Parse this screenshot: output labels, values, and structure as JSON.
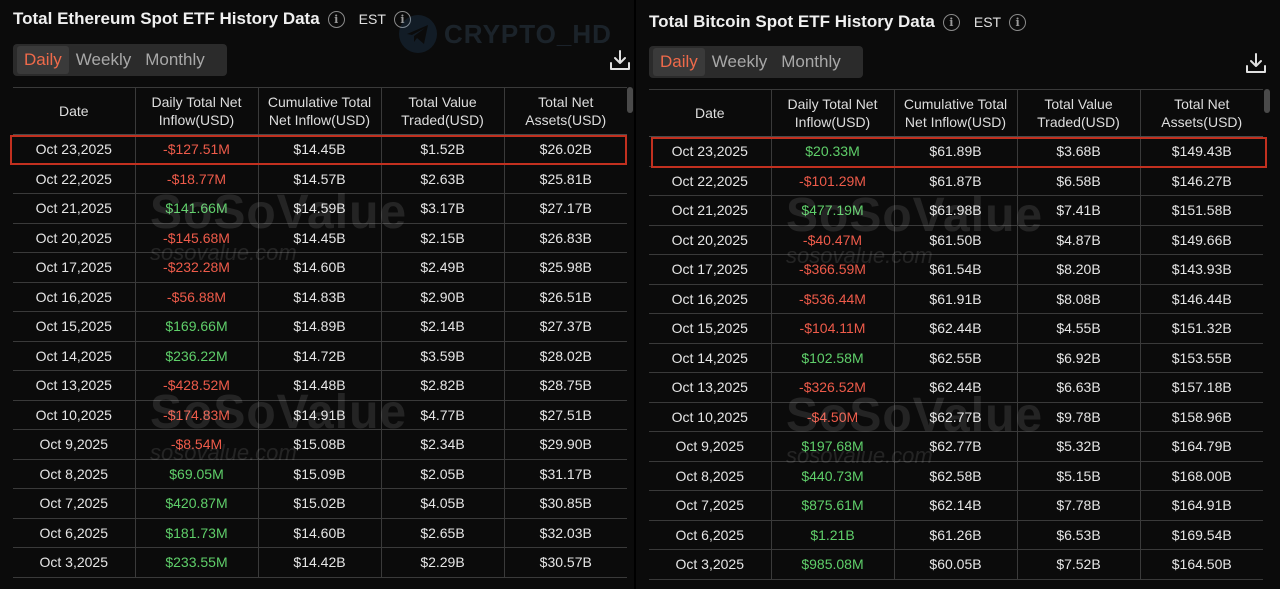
{
  "watermarks": {
    "top": "CRYPTO_HD",
    "brand": "SoSoValue",
    "brand_url": "sosovalue.com"
  },
  "eth": {
    "title": "Total Ethereum Spot ETF History Data",
    "timezone": "EST",
    "tabs": [
      "Daily",
      "Weekly",
      "Monthly"
    ],
    "active_tab": 0,
    "columns": [
      "Date",
      "Daily Total Net Inflow(USD)",
      "Cumulative Total Net Inflow(USD)",
      "Total Value Traded(USD)",
      "Total Net Assets(USD)"
    ],
    "rows": [
      {
        "date": "Oct 23,2025",
        "inflow": "-$127.51M",
        "cumulative": "$14.45B",
        "traded": "$1.52B",
        "assets": "$26.02B",
        "sign": "neg"
      },
      {
        "date": "Oct 22,2025",
        "inflow": "-$18.77M",
        "cumulative": "$14.57B",
        "traded": "$2.63B",
        "assets": "$25.81B",
        "sign": "neg"
      },
      {
        "date": "Oct 21,2025",
        "inflow": "$141.66M",
        "cumulative": "$14.59B",
        "traded": "$3.17B",
        "assets": "$27.17B",
        "sign": "pos"
      },
      {
        "date": "Oct 20,2025",
        "inflow": "-$145.68M",
        "cumulative": "$14.45B",
        "traded": "$2.15B",
        "assets": "$26.83B",
        "sign": "neg"
      },
      {
        "date": "Oct 17,2025",
        "inflow": "-$232.28M",
        "cumulative": "$14.60B",
        "traded": "$2.49B",
        "assets": "$25.98B",
        "sign": "neg"
      },
      {
        "date": "Oct 16,2025",
        "inflow": "-$56.88M",
        "cumulative": "$14.83B",
        "traded": "$2.90B",
        "assets": "$26.51B",
        "sign": "neg"
      },
      {
        "date": "Oct 15,2025",
        "inflow": "$169.66M",
        "cumulative": "$14.89B",
        "traded": "$2.14B",
        "assets": "$27.37B",
        "sign": "pos"
      },
      {
        "date": "Oct 14,2025",
        "inflow": "$236.22M",
        "cumulative": "$14.72B",
        "traded": "$3.59B",
        "assets": "$28.02B",
        "sign": "pos"
      },
      {
        "date": "Oct 13,2025",
        "inflow": "-$428.52M",
        "cumulative": "$14.48B",
        "traded": "$2.82B",
        "assets": "$28.75B",
        "sign": "neg"
      },
      {
        "date": "Oct 10,2025",
        "inflow": "-$174.83M",
        "cumulative": "$14.91B",
        "traded": "$4.77B",
        "assets": "$27.51B",
        "sign": "neg"
      },
      {
        "date": "Oct 9,2025",
        "inflow": "-$8.54M",
        "cumulative": "$15.08B",
        "traded": "$2.34B",
        "assets": "$29.90B",
        "sign": "neg"
      },
      {
        "date": "Oct 8,2025",
        "inflow": "$69.05M",
        "cumulative": "$15.09B",
        "traded": "$2.05B",
        "assets": "$31.17B",
        "sign": "pos"
      },
      {
        "date": "Oct 7,2025",
        "inflow": "$420.87M",
        "cumulative": "$15.02B",
        "traded": "$4.05B",
        "assets": "$30.85B",
        "sign": "pos"
      },
      {
        "date": "Oct 6,2025",
        "inflow": "$181.73M",
        "cumulative": "$14.60B",
        "traded": "$2.65B",
        "assets": "$32.03B",
        "sign": "pos"
      },
      {
        "date": "Oct 3,2025",
        "inflow": "$233.55M",
        "cumulative": "$14.42B",
        "traded": "$2.29B",
        "assets": "$30.57B",
        "sign": "pos"
      }
    ]
  },
  "btc": {
    "title": "Total Bitcoin Spot ETF History Data",
    "timezone": "EST",
    "tabs": [
      "Daily",
      "Weekly",
      "Monthly"
    ],
    "active_tab": 0,
    "columns": [
      "Date",
      "Daily Total Net Inflow(USD)",
      "Cumulative Total Net Inflow(USD)",
      "Total Value Traded(USD)",
      "Total Net Assets(USD)"
    ],
    "rows": [
      {
        "date": "Oct 23,2025",
        "inflow": "$20.33M",
        "cumulative": "$61.89B",
        "traded": "$3.68B",
        "assets": "$149.43B",
        "sign": "pos"
      },
      {
        "date": "Oct 22,2025",
        "inflow": "-$101.29M",
        "cumulative": "$61.87B",
        "traded": "$6.58B",
        "assets": "$146.27B",
        "sign": "neg"
      },
      {
        "date": "Oct 21,2025",
        "inflow": "$477.19M",
        "cumulative": "$61.98B",
        "traded": "$7.41B",
        "assets": "$151.58B",
        "sign": "pos"
      },
      {
        "date": "Oct 20,2025",
        "inflow": "-$40.47M",
        "cumulative": "$61.50B",
        "traded": "$4.87B",
        "assets": "$149.66B",
        "sign": "neg"
      },
      {
        "date": "Oct 17,2025",
        "inflow": "-$366.59M",
        "cumulative": "$61.54B",
        "traded": "$8.20B",
        "assets": "$143.93B",
        "sign": "neg"
      },
      {
        "date": "Oct 16,2025",
        "inflow": "-$536.44M",
        "cumulative": "$61.91B",
        "traded": "$8.08B",
        "assets": "$146.44B",
        "sign": "neg"
      },
      {
        "date": "Oct 15,2025",
        "inflow": "-$104.11M",
        "cumulative": "$62.44B",
        "traded": "$4.55B",
        "assets": "$151.32B",
        "sign": "neg"
      },
      {
        "date": "Oct 14,2025",
        "inflow": "$102.58M",
        "cumulative": "$62.55B",
        "traded": "$6.92B",
        "assets": "$153.55B",
        "sign": "pos"
      },
      {
        "date": "Oct 13,2025",
        "inflow": "-$326.52M",
        "cumulative": "$62.44B",
        "traded": "$6.63B",
        "assets": "$157.18B",
        "sign": "neg"
      },
      {
        "date": "Oct 10,2025",
        "inflow": "-$4.50M",
        "cumulative": "$62.77B",
        "traded": "$9.78B",
        "assets": "$158.96B",
        "sign": "neg"
      },
      {
        "date": "Oct 9,2025",
        "inflow": "$197.68M",
        "cumulative": "$62.77B",
        "traded": "$5.32B",
        "assets": "$164.79B",
        "sign": "pos"
      },
      {
        "date": "Oct 8,2025",
        "inflow": "$440.73M",
        "cumulative": "$62.58B",
        "traded": "$5.15B",
        "assets": "$168.00B",
        "sign": "pos"
      },
      {
        "date": "Oct 7,2025",
        "inflow": "$875.61M",
        "cumulative": "$62.14B",
        "traded": "$7.78B",
        "assets": "$164.91B",
        "sign": "pos"
      },
      {
        "date": "Oct 6,2025",
        "inflow": "$1.21B",
        "cumulative": "$61.26B",
        "traded": "$6.53B",
        "assets": "$169.54B",
        "sign": "pos"
      },
      {
        "date": "Oct 3,2025",
        "inflow": "$985.08M",
        "cumulative": "$60.05B",
        "traded": "$7.52B",
        "assets": "$164.50B",
        "sign": "pos"
      }
    ]
  }
}
